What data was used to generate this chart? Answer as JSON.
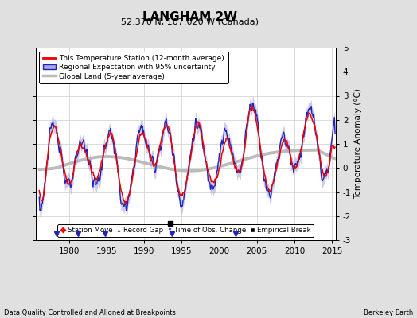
{
  "title": "LANGHAM 2W",
  "subtitle": "52.370 N, 107.020 W (Canada)",
  "ylabel": "Temperature Anomaly (°C)",
  "xlabel_left": "Data Quality Controlled and Aligned at Breakpoints",
  "xlabel_right": "Berkeley Earth",
  "ylim": [
    -3.0,
    5.0
  ],
  "xlim": [
    1975.5,
    2015.5
  ],
  "yticks": [
    -3,
    -2,
    -1,
    0,
    1,
    2,
    3,
    4,
    5
  ],
  "xticks": [
    1980,
    1985,
    1990,
    1995,
    2000,
    2005,
    2010,
    2015
  ],
  "station_color": "#EE0000",
  "regional_color": "#2222BB",
  "regional_fill_color": "#AAAADD",
  "global_color": "#BBBBBB",
  "background_color": "#E0E0E0",
  "plot_bg_color": "#FFFFFF",
  "grid_color": "#CCCCCC",
  "empirical_break_year": 1993.5,
  "empirical_break_y": -2.3,
  "obs_change_years": [
    1978.3,
    1981.2,
    1984.8,
    1993.7,
    2002.2
  ],
  "obs_change_y": -2.75
}
